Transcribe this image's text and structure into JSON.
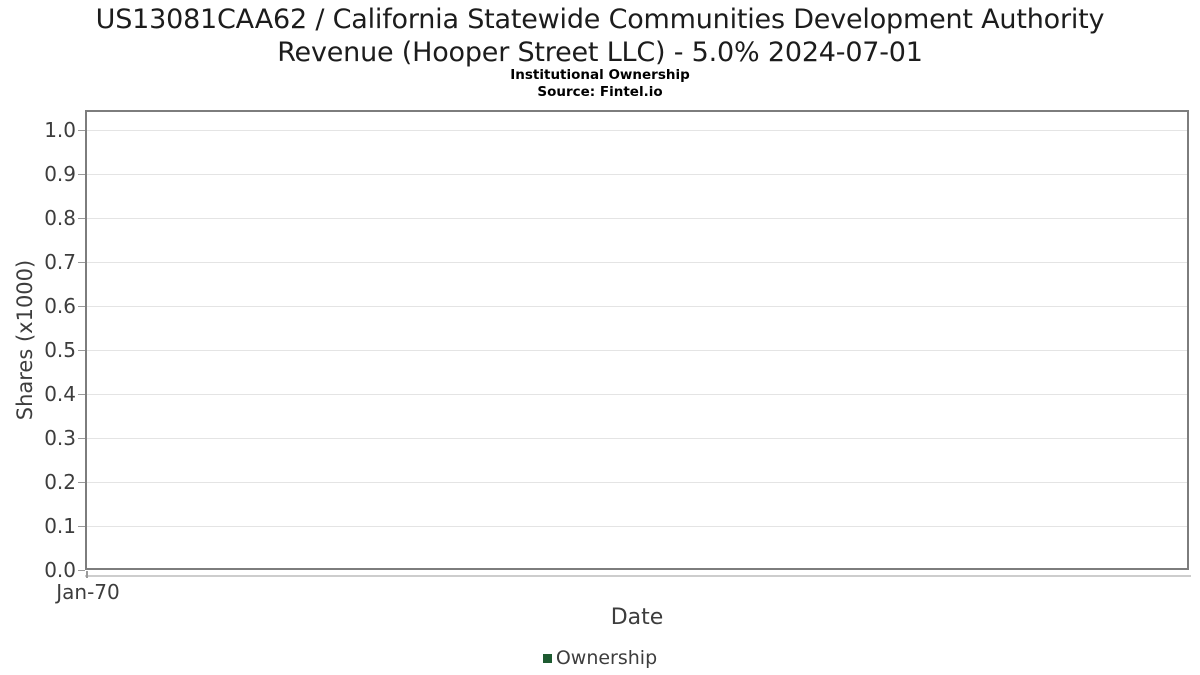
{
  "header": {
    "title_lines": [
      "US13081CAA62 / California Statewide Communities Development Authority",
      "Revenue (Hooper Street LLC) - 5.0% 2024-07-01"
    ],
    "subtitle": "Institutional Ownership",
    "source": "Source: Fintel.io"
  },
  "chart_data": {
    "type": "line",
    "title": "US13081CAA62 / California Statewide Communities Development Authority Revenue (Hooper Street LLC) - 5.0% 2024-07-01",
    "subtitle": "Institutional Ownership",
    "source": "Source: Fintel.io",
    "xlabel": "Date",
    "ylabel": "Shares (x1000)",
    "x_tick_labels": [
      "Jan-70"
    ],
    "y_tick_labels": [
      "0.0",
      "0.1",
      "0.2",
      "0.3",
      "0.4",
      "0.5",
      "0.6",
      "0.7",
      "0.8",
      "0.9",
      "1.0"
    ],
    "ylim": [
      0.0,
      1.045
    ],
    "grid": true,
    "legend_position": "bottom-center",
    "legend": [
      {
        "label": "Ownership",
        "color": "#1e5b31"
      }
    ],
    "series": [
      {
        "name": "Ownership",
        "x": [],
        "y": []
      }
    ]
  },
  "colors": {
    "legend_swatch": "#1e5b31",
    "plot_border": "#7d7d7d",
    "gridline": "#e4e4e4",
    "axis_text": "#3d3d3d",
    "title_text": "#1c1c1c"
  }
}
